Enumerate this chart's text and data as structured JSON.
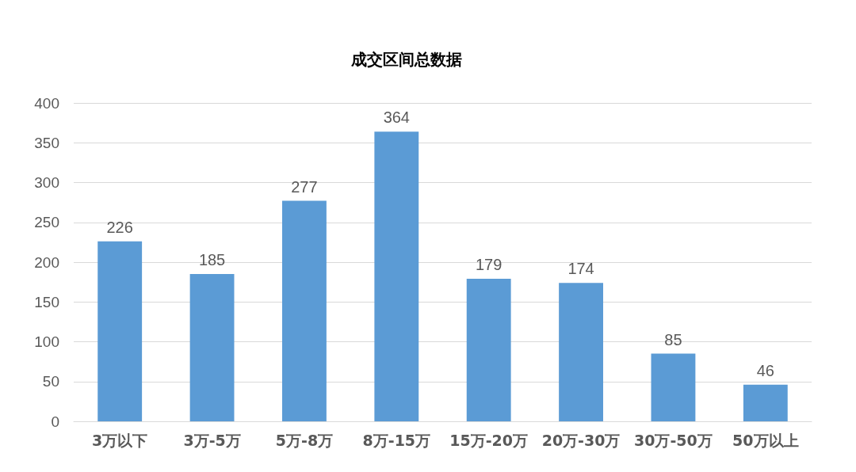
{
  "chart_data": {
    "type": "bar",
    "title": "成交区间总数据",
    "categories": [
      "3万以下",
      "3万-5万",
      "5万-8万",
      "8万-15万",
      "15万-20万",
      "20万-30万",
      "30万-50万",
      "50万以上"
    ],
    "values": [
      226,
      185,
      277,
      364,
      179,
      174,
      85,
      46
    ],
    "color": "#5b9bd5",
    "ylim": [
      0,
      400
    ],
    "yticks": [
      0,
      50,
      100,
      150,
      200,
      250,
      300,
      350,
      400
    ],
    "grid": "y",
    "data_labels": true
  }
}
